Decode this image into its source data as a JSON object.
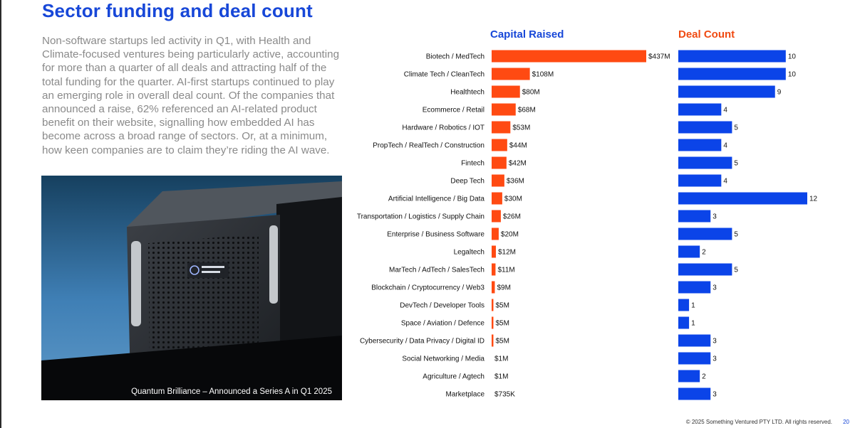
{
  "page": {
    "title": "Sector funding and deal count",
    "body": "Non-software startups led activity in Q1, with Health and Climate-focused ventures being particularly active, accounting for more than a quarter of all deals and attracting half of the total funding for the quarter. AI-first startups continued to play an emerging role in overall deal count. Of the companies that announced a raise, 62% referenced an AI-related product benefit on their website, signalling how embedded AI has become across a broad range of sectors. Or, at a minimum, how keen companies are to claim they’re riding the AI wave.",
    "photo_caption": "Quantum Brilliance – Announced a Series A in Q1 2025",
    "footer": "© 2025 Something Ventured PTY LTD. All rights reserved.",
    "page_number": "20"
  },
  "chart_data": {
    "type": "bar",
    "orientation": "horizontal",
    "categories": [
      "Biotech / MedTech",
      "Climate Tech / CleanTech",
      "Healthtech",
      "Ecommerce / Retail",
      "Hardware / Robotics / IOT",
      "PropTech / RealTech / Construction",
      "Fintech",
      "Deep Tech",
      "Artificial Intelligence / Big Data",
      "Transportation / Logistics / Supply Chain",
      "Enterprise / Business Software",
      "Legaltech",
      "MarTech / AdTech / SalesTech",
      "Blockchain / Cryptocurrency / Web3",
      "DevTech / Developer Tools",
      "Space / Aviation / Defence",
      "Cybersecurity / Data Privacy / Digital ID",
      "Social Networking / Media",
      "Agriculture / Agtech",
      "Marketplace"
    ],
    "series": [
      {
        "name": "Capital Raised",
        "color": "#ff4a12",
        "values": [
          437,
          108,
          80,
          68,
          53,
          44,
          42,
          36,
          30,
          26,
          20,
          12,
          11,
          9,
          5,
          5,
          5,
          1,
          1,
          0.735
        ],
        "labels": [
          "$437M",
          "$108M",
          "$80M",
          "$68M",
          "$53M",
          "$44M",
          "$42M",
          "$36M",
          "$30M",
          "$26M",
          "$20M",
          "$12M",
          "$11M",
          "$9M",
          "$5M",
          "$5M",
          "$5M",
          "$1M",
          "$1M",
          "$735K"
        ]
      },
      {
        "name": "Deal Count",
        "color": "#0b44e8",
        "values": [
          10,
          10,
          9,
          4,
          5,
          4,
          5,
          4,
          12,
          3,
          5,
          2,
          5,
          3,
          1,
          1,
          3,
          3,
          2,
          3
        ],
        "labels": [
          "10",
          "10",
          "9",
          "4",
          "5",
          "4",
          "5",
          "4",
          "12",
          "3",
          "5",
          "2",
          "5",
          "3",
          "1",
          "1",
          "3",
          "3",
          "2",
          "3"
        ]
      }
    ],
    "title_colors": {
      "Capital Raised": "#1747d8",
      "Deal Count": "#f04a12"
    }
  }
}
